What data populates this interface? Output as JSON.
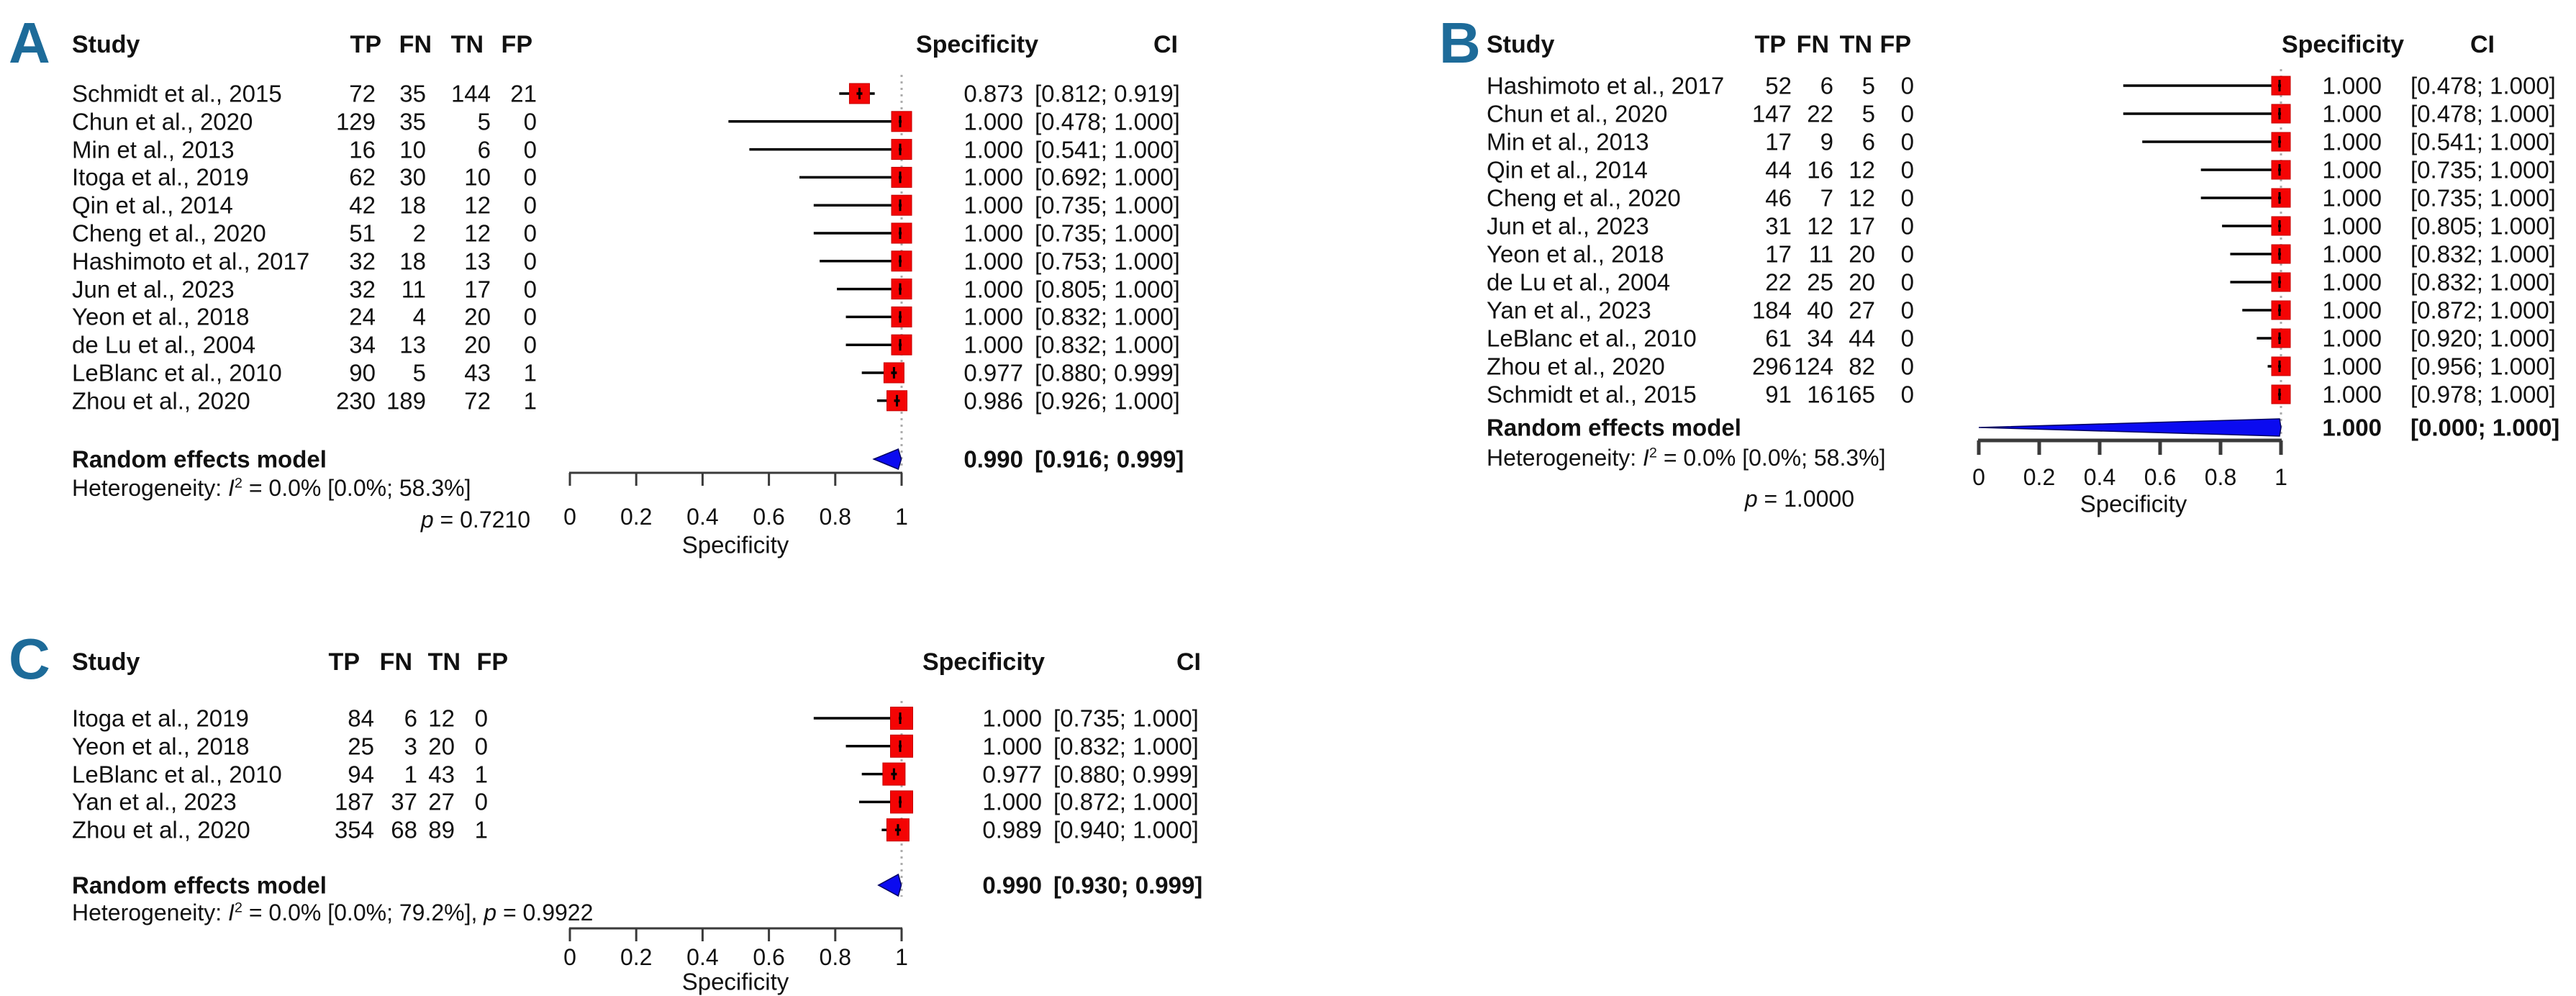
{
  "figure_title": "",
  "colors": {
    "panel_label": "#1d6b99",
    "square": "#f40404",
    "diamond": "#0b0bf0",
    "diamond_stroke": "#000060",
    "whisker": "#000000",
    "ref_line": "#ababab",
    "axis": "#3a3a3a",
    "text": "#111111"
  },
  "chart_data": [
    {
      "type": "forest",
      "id": "A",
      "label": "A",
      "columns": {
        "study": "Study",
        "tp": "TP",
        "fn": "FN",
        "tn": "TN",
        "fp": "FP",
        "specificity": "Specificity",
        "ci": "CI"
      },
      "rows": [
        {
          "study": "Schmidt et al., 2015",
          "tp": 72,
          "fn": 35,
          "tn": 144,
          "fp": 21,
          "spec": 0.873,
          "ci_lo": 0.812,
          "ci_hi": 0.919,
          "spec_text": "0.873",
          "ci_text": "[0.812; 0.919]"
        },
        {
          "study": "Chun et al., 2020",
          "tp": 129,
          "fn": 35,
          "tn": 5,
          "fp": 0,
          "spec": 1.0,
          "ci_lo": 0.478,
          "ci_hi": 1.0,
          "spec_text": "1.000",
          "ci_text": "[0.478; 1.000]"
        },
        {
          "study": "Min et al., 2013",
          "tp": 16,
          "fn": 10,
          "tn": 6,
          "fp": 0,
          "spec": 1.0,
          "ci_lo": 0.541,
          "ci_hi": 1.0,
          "spec_text": "1.000",
          "ci_text": "[0.541; 1.000]"
        },
        {
          "study": "Itoga et al., 2019",
          "tp": 62,
          "fn": 30,
          "tn": 10,
          "fp": 0,
          "spec": 1.0,
          "ci_lo": 0.692,
          "ci_hi": 1.0,
          "spec_text": "1.000",
          "ci_text": "[0.692; 1.000]"
        },
        {
          "study": "Qin et al., 2014",
          "tp": 42,
          "fn": 18,
          "tn": 12,
          "fp": 0,
          "spec": 1.0,
          "ci_lo": 0.735,
          "ci_hi": 1.0,
          "spec_text": "1.000",
          "ci_text": "[0.735; 1.000]"
        },
        {
          "study": "Cheng et al., 2020",
          "tp": 51,
          "fn": 2,
          "tn": 12,
          "fp": 0,
          "spec": 1.0,
          "ci_lo": 0.735,
          "ci_hi": 1.0,
          "spec_text": "1.000",
          "ci_text": "[0.735; 1.000]"
        },
        {
          "study": "Hashimoto et al., 2017",
          "tp": 32,
          "fn": 18,
          "tn": 13,
          "fp": 0,
          "spec": 1.0,
          "ci_lo": 0.753,
          "ci_hi": 1.0,
          "spec_text": "1.000",
          "ci_text": "[0.753; 1.000]"
        },
        {
          "study": "Jun et al., 2023",
          "tp": 32,
          "fn": 11,
          "tn": 17,
          "fp": 0,
          "spec": 1.0,
          "ci_lo": 0.805,
          "ci_hi": 1.0,
          "spec_text": "1.000",
          "ci_text": "[0.805; 1.000]"
        },
        {
          "study": "Yeon et al., 2018",
          "tp": 24,
          "fn": 4,
          "tn": 20,
          "fp": 0,
          "spec": 1.0,
          "ci_lo": 0.832,
          "ci_hi": 1.0,
          "spec_text": "1.000",
          "ci_text": "[0.832; 1.000]"
        },
        {
          "study": "de Lu et al., 2004",
          "tp": 34,
          "fn": 13,
          "tn": 20,
          "fp": 0,
          "spec": 1.0,
          "ci_lo": 0.832,
          "ci_hi": 1.0,
          "spec_text": "1.000",
          "ci_text": "[0.832; 1.000]"
        },
        {
          "study": "LeBlanc et al., 2010",
          "tp": 90,
          "fn": 5,
          "tn": 43,
          "fp": 1,
          "spec": 0.977,
          "ci_lo": 0.88,
          "ci_hi": 0.999,
          "spec_text": "0.977",
          "ci_text": "[0.880; 0.999]"
        },
        {
          "study": "Zhou et al., 2020",
          "tp": 230,
          "fn": 189,
          "tn": 72,
          "fp": 1,
          "spec": 0.986,
          "ci_lo": 0.926,
          "ci_hi": 1.0,
          "spec_text": "0.986",
          "ci_text": "[0.926; 1.000]"
        }
      ],
      "summary": {
        "label": "Random effects model",
        "spec": 0.99,
        "ci_lo": 0.916,
        "ci_hi": 0.999,
        "spec_text": "0.990",
        "ci_text": "[0.916; 0.999]"
      },
      "heterogeneity": {
        "prefix": "Heterogeneity: ",
        "stat": "I",
        "sup": "2",
        "rest": " = 0.0% [0.0%; 58.3%]",
        "p_label": "p",
        "p_text": " = 0.7210",
        "p_inline": false
      },
      "axis": {
        "label": "Specificity",
        "min": 0,
        "max": 1,
        "ticks": [
          0,
          0.2,
          0.4,
          0.6,
          0.8,
          1
        ],
        "tick_labels": [
          "0",
          "0.2",
          "0.4",
          "0.6",
          "0.8",
          "1"
        ]
      }
    },
    {
      "type": "forest",
      "id": "B",
      "label": "B",
      "columns": {
        "study": "Study",
        "tp": "TP",
        "fn": "FN",
        "tn": "TN",
        "fp": "FP",
        "specificity": "Specificity",
        "ci": "CI"
      },
      "rows": [
        {
          "study": "Hashimoto et al., 2017",
          "tp": 52,
          "fn": 6,
          "tn": 5,
          "fp": 0,
          "spec": 1.0,
          "ci_lo": 0.478,
          "ci_hi": 1.0,
          "spec_text": "1.000",
          "ci_text": "[0.478; 1.000]"
        },
        {
          "study": "Chun et al., 2020",
          "tp": 147,
          "fn": 22,
          "tn": 5,
          "fp": 0,
          "spec": 1.0,
          "ci_lo": 0.478,
          "ci_hi": 1.0,
          "spec_text": "1.000",
          "ci_text": "[0.478; 1.000]"
        },
        {
          "study": "Min et al., 2013",
          "tp": 17,
          "fn": 9,
          "tn": 6,
          "fp": 0,
          "spec": 1.0,
          "ci_lo": 0.541,
          "ci_hi": 1.0,
          "spec_text": "1.000",
          "ci_text": "[0.541; 1.000]"
        },
        {
          "study": "Qin et al., 2014",
          "tp": 44,
          "fn": 16,
          "tn": 12,
          "fp": 0,
          "spec": 1.0,
          "ci_lo": 0.735,
          "ci_hi": 1.0,
          "spec_text": "1.000",
          "ci_text": "[0.735; 1.000]"
        },
        {
          "study": "Cheng et al., 2020",
          "tp": 46,
          "fn": 7,
          "tn": 12,
          "fp": 0,
          "spec": 1.0,
          "ci_lo": 0.735,
          "ci_hi": 1.0,
          "spec_text": "1.000",
          "ci_text": "[0.735; 1.000]"
        },
        {
          "study": "Jun et al., 2023",
          "tp": 31,
          "fn": 12,
          "tn": 17,
          "fp": 0,
          "spec": 1.0,
          "ci_lo": 0.805,
          "ci_hi": 1.0,
          "spec_text": "1.000",
          "ci_text": "[0.805; 1.000]"
        },
        {
          "study": "Yeon et al., 2018",
          "tp": 17,
          "fn": 11,
          "tn": 20,
          "fp": 0,
          "spec": 1.0,
          "ci_lo": 0.832,
          "ci_hi": 1.0,
          "spec_text": "1.000",
          "ci_text": "[0.832; 1.000]"
        },
        {
          "study": "de Lu et al., 2004",
          "tp": 22,
          "fn": 25,
          "tn": 20,
          "fp": 0,
          "spec": 1.0,
          "ci_lo": 0.832,
          "ci_hi": 1.0,
          "spec_text": "1.000",
          "ci_text": "[0.832; 1.000]"
        },
        {
          "study": "Yan et al., 2023",
          "tp": 184,
          "fn": 40,
          "tn": 27,
          "fp": 0,
          "spec": 1.0,
          "ci_lo": 0.872,
          "ci_hi": 1.0,
          "spec_text": "1.000",
          "ci_text": "[0.872; 1.000]"
        },
        {
          "study": "LeBlanc et al., 2010",
          "tp": 61,
          "fn": 34,
          "tn": 44,
          "fp": 0,
          "spec": 1.0,
          "ci_lo": 0.92,
          "ci_hi": 1.0,
          "spec_text": "1.000",
          "ci_text": "[0.920; 1.000]"
        },
        {
          "study": "Zhou et al., 2020",
          "tp": 296,
          "fn": 124,
          "tn": 82,
          "fp": 0,
          "spec": 1.0,
          "ci_lo": 0.956,
          "ci_hi": 1.0,
          "spec_text": "1.000",
          "ci_text": "[0.956; 1.000]"
        },
        {
          "study": "Schmidt et al., 2015",
          "tp": 91,
          "fn": 16,
          "tn": 165,
          "fp": 0,
          "spec": 1.0,
          "ci_lo": 0.978,
          "ci_hi": 1.0,
          "spec_text": "1.000",
          "ci_text": "[0.978; 1.000]"
        }
      ],
      "summary": {
        "label": "Random effects model",
        "spec": 1.0,
        "ci_lo": 0.0,
        "ci_hi": 1.0,
        "spec_text": "1.000",
        "ci_text": "[0.000; 1.000]"
      },
      "heterogeneity": {
        "prefix": "Heterogeneity: ",
        "stat": "I",
        "sup": "2",
        "rest": " = 0.0% [0.0%; 58.3%]",
        "p_label": "p",
        "p_text": " = 1.0000",
        "p_inline": false
      },
      "axis": {
        "label": "Specificity",
        "min": 0,
        "max": 1,
        "ticks": [
          0,
          0.2,
          0.4,
          0.6,
          0.8,
          1
        ],
        "tick_labels": [
          "0",
          "0.2",
          "0.4",
          "0.6",
          "0.8",
          "1"
        ]
      }
    },
    {
      "type": "forest",
      "id": "C",
      "label": "C",
      "columns": {
        "study": "Study",
        "tp": "TP",
        "fn": "FN",
        "tn": "TN",
        "fp": "FP",
        "specificity": "Specificity",
        "ci": "CI"
      },
      "rows": [
        {
          "study": "Itoga et al., 2019",
          "tp": 84,
          "fn": 6,
          "tn": 12,
          "fp": 0,
          "spec": 1.0,
          "ci_lo": 0.735,
          "ci_hi": 1.0,
          "spec_text": "1.000",
          "ci_text": "[0.735; 1.000]"
        },
        {
          "study": "Yeon et al., 2018",
          "tp": 25,
          "fn": 3,
          "tn": 20,
          "fp": 0,
          "spec": 1.0,
          "ci_lo": 0.832,
          "ci_hi": 1.0,
          "spec_text": "1.000",
          "ci_text": "[0.832; 1.000]"
        },
        {
          "study": "LeBlanc et al., 2010",
          "tp": 94,
          "fn": 1,
          "tn": 43,
          "fp": 1,
          "spec": 0.977,
          "ci_lo": 0.88,
          "ci_hi": 0.999,
          "spec_text": "0.977",
          "ci_text": "[0.880; 0.999]"
        },
        {
          "study": "Yan et al., 2023",
          "tp": 187,
          "fn": 37,
          "tn": 27,
          "fp": 0,
          "spec": 1.0,
          "ci_lo": 0.872,
          "ci_hi": 1.0,
          "spec_text": "1.000",
          "ci_text": "[0.872; 1.000]"
        },
        {
          "study": "Zhou et al., 2020",
          "tp": 354,
          "fn": 68,
          "tn": 89,
          "fp": 1,
          "spec": 0.989,
          "ci_lo": 0.94,
          "ci_hi": 1.0,
          "spec_text": "0.989",
          "ci_text": "[0.940; 1.000]"
        }
      ],
      "summary": {
        "label": "Random effects model",
        "spec": 0.99,
        "ci_lo": 0.93,
        "ci_hi": 0.999,
        "spec_text": "0.990",
        "ci_text": "[0.930; 0.999]"
      },
      "heterogeneity": {
        "prefix": "Heterogeneity: ",
        "stat": "I",
        "sup": "2",
        "rest": " = 0.0% [0.0%; 79.2%], ",
        "p_label": "p",
        "p_text": " = 0.9922",
        "p_inline": true
      },
      "axis": {
        "label": "Specificity",
        "min": 0,
        "max": 1,
        "ticks": [
          0,
          0.2,
          0.4,
          0.6,
          0.8,
          1
        ],
        "tick_labels": [
          "0",
          "0.2",
          "0.4",
          "0.6",
          "0.8",
          "1"
        ]
      }
    }
  ]
}
